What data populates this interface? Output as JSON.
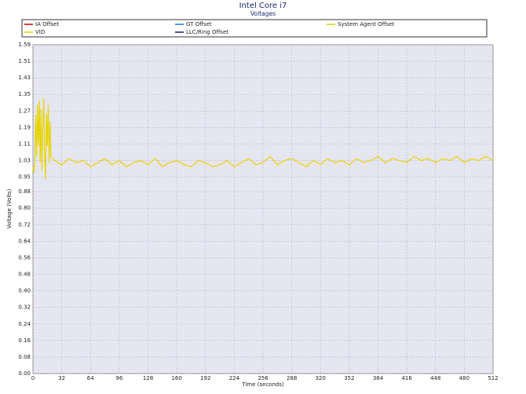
{
  "chart_data": {
    "type": "line",
    "title": "Intel Core i7",
    "subtitle": "Voltages",
    "x_label": "Time (seconds)",
    "y_label": "Voltage (Volts)",
    "xlim": [
      0,
      512
    ],
    "xticks": [
      0,
      32,
      64,
      96,
      128,
      160,
      192,
      224,
      256,
      288,
      320,
      352,
      384,
      416,
      448,
      480,
      512
    ],
    "ylim": [
      0,
      1.59
    ],
    "yticks": [
      {
        "value": 0,
        "label": "0.00"
      },
      {
        "value": 0.08,
        "label": "0.08"
      },
      {
        "value": 0.16,
        "label": "0.16"
      },
      {
        "value": 0.24,
        "label": "0.24"
      },
      {
        "value": 0.32,
        "label": "0.32"
      },
      {
        "value": 0.4,
        "label": "0.40"
      },
      {
        "value": 0.48,
        "label": "0.48"
      },
      {
        "value": 0.56,
        "label": "0.56"
      },
      {
        "value": 0.64,
        "label": "0.64"
      },
      {
        "value": 0.72,
        "label": "0.72"
      },
      {
        "value": 0.8,
        "label": "0.80"
      },
      {
        "value": 0.88,
        "label": "0.88"
      },
      {
        "value": 0.95,
        "label": "0.95"
      },
      {
        "value": 1.03,
        "label": "1.03"
      },
      {
        "value": 1.11,
        "label": "1.11"
      },
      {
        "value": 1.19,
        "label": "1.19"
      },
      {
        "value": 1.27,
        "label": "1.27"
      },
      {
        "value": 1.35,
        "label": "1.35"
      },
      {
        "value": 1.43,
        "label": "1.43"
      },
      {
        "value": 1.51,
        "label": "1.51"
      },
      {
        "value": 1.59,
        "label": "1.59"
      }
    ],
    "grid": true,
    "x": [
      0,
      1,
      2,
      3,
      4,
      5,
      6,
      7,
      8,
      9,
      10,
      11,
      12,
      13,
      14,
      15,
      16,
      17,
      18,
      19,
      20,
      24,
      32,
      40,
      48,
      56,
      64,
      72,
      80,
      88,
      96,
      104,
      112,
      120,
      128,
      136,
      144,
      152,
      160,
      168,
      176,
      184,
      192,
      200,
      208,
      216,
      224,
      232,
      240,
      248,
      256,
      264,
      272,
      280,
      288,
      296,
      304,
      312,
      320,
      328,
      336,
      344,
      352,
      360,
      368,
      376,
      384,
      392,
      400,
      408,
      416,
      424,
      432,
      440,
      448,
      456,
      464,
      472,
      480,
      488,
      496,
      504,
      512
    ],
    "series": [
      {
        "name": "IA Offset",
        "color": "#d00000",
        "values": [
          null,
          null,
          null,
          null,
          null,
          null,
          null,
          null,
          null,
          null,
          null,
          null,
          null,
          null,
          null,
          null,
          null,
          null,
          null,
          null,
          null,
          null,
          null,
          null,
          null,
          null,
          null,
          null,
          null,
          null,
          null,
          null,
          null,
          null,
          null,
          null,
          null,
          null,
          null,
          null,
          null,
          null,
          null,
          null,
          null,
          null,
          null,
          null,
          null,
          null,
          null,
          null,
          null,
          null,
          null,
          null,
          null,
          null,
          null,
          null,
          null,
          null,
          null,
          null,
          null,
          null,
          null,
          null,
          null,
          null,
          null,
          null,
          null,
          null,
          null,
          null,
          null,
          null,
          null,
          null,
          null,
          null,
          null
        ]
      },
      {
        "name": "GT Offset",
        "color": "#1e73d2",
        "values": [
          null,
          null,
          null,
          null,
          null,
          null,
          null,
          null,
          null,
          null,
          null,
          null,
          null,
          null,
          null,
          null,
          null,
          null,
          null,
          null,
          null,
          null,
          null,
          null,
          null,
          null,
          null,
          null,
          null,
          null,
          null,
          null,
          null,
          null,
          null,
          null,
          null,
          null,
          null,
          null,
          null,
          null,
          null,
          null,
          null,
          null,
          null,
          null,
          null,
          null,
          null,
          null,
          null,
          null,
          null,
          null,
          null,
          null,
          null,
          null,
          null,
          null,
          null,
          null,
          null,
          null,
          null,
          null,
          null,
          null,
          null,
          null,
          null,
          null,
          null,
          null,
          null,
          null,
          null,
          null,
          null,
          null,
          null
        ]
      },
      {
        "name": "System Agent Offset",
        "color": "#c8d400",
        "values": [
          null,
          null,
          null,
          null,
          null,
          null,
          null,
          null,
          null,
          null,
          null,
          null,
          null,
          null,
          null,
          null,
          null,
          null,
          null,
          null,
          null,
          null,
          null,
          null,
          null,
          null,
          null,
          null,
          null,
          null,
          null,
          null,
          null,
          null,
          null,
          null,
          null,
          null,
          null,
          null,
          null,
          null,
          null,
          null,
          null,
          null,
          null,
          null,
          null,
          null,
          null,
          null,
          null,
          null,
          null,
          null,
          null,
          null,
          null,
          null,
          null,
          null,
          null,
          null,
          null,
          null,
          null,
          null,
          null,
          null,
          null,
          null,
          null,
          null,
          null,
          null,
          null,
          null,
          null,
          null,
          null,
          null,
          null
        ]
      },
      {
        "name": "VID",
        "color": "#e8d400",
        "values": [
          1.0,
          0.97,
          1.03,
          1.25,
          1.05,
          1.3,
          1.1,
          1.32,
          1.02,
          1.28,
          0.98,
          1.2,
          1.33,
          1.05,
          0.94,
          1.26,
          1.1,
          1.3,
          1.02,
          1.22,
          1.05,
          1.03,
          1.01,
          1.04,
          1.02,
          1.03,
          1.0,
          1.02,
          1.04,
          1.01,
          1.03,
          1.0,
          1.02,
          1.03,
          1.01,
          1.04,
          1.0,
          1.02,
          1.03,
          1.01,
          1.0,
          1.03,
          1.02,
          1.0,
          1.01,
          1.03,
          1.0,
          1.02,
          1.04,
          1.01,
          1.02,
          1.05,
          1.01,
          1.03,
          1.04,
          1.02,
          1.0,
          1.03,
          1.01,
          1.04,
          1.02,
          1.03,
          1.01,
          1.04,
          1.02,
          1.03,
          1.05,
          1.02,
          1.04,
          1.03,
          1.02,
          1.05,
          1.03,
          1.04,
          1.02,
          1.04,
          1.03,
          1.05,
          1.02,
          1.04,
          1.03,
          1.05,
          1.03
        ]
      },
      {
        "name": "LLC/Ring Offset",
        "color": "#1a1a6e",
        "values": [
          null,
          null,
          null,
          null,
          null,
          null,
          null,
          null,
          null,
          null,
          null,
          null,
          null,
          null,
          null,
          null,
          null,
          null,
          null,
          null,
          null,
          null,
          null,
          null,
          null,
          null,
          null,
          null,
          null,
          null,
          null,
          null,
          null,
          null,
          null,
          null,
          null,
          null,
          null,
          null,
          null,
          null,
          null,
          null,
          null,
          null,
          null,
          null,
          null,
          null,
          null,
          null,
          null,
          null,
          null,
          null,
          null,
          null,
          null,
          null,
          null,
          null,
          null,
          null,
          null,
          null,
          null,
          null,
          null,
          null,
          null,
          null,
          null,
          null,
          null,
          null,
          null,
          null,
          null,
          null,
          null,
          null,
          null
        ]
      }
    ]
  }
}
